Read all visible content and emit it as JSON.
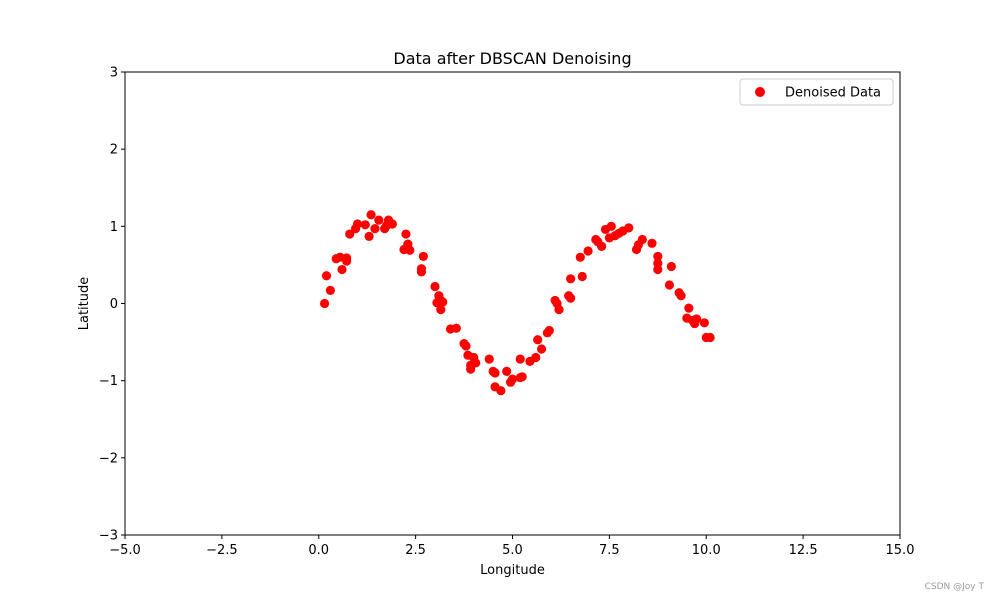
{
  "chart_data": {
    "type": "scatter",
    "title": "Data after DBSCAN Denoising",
    "xlabel": "Longitude",
    "ylabel": "Latitude",
    "xlim": [
      -5,
      15
    ],
    "ylim": [
      -3,
      3
    ],
    "xticks": [
      -5,
      -2.5,
      0,
      2.5,
      5,
      7.5,
      10,
      12.5,
      15
    ],
    "xtick_labels": [
      "−5.0",
      "−2.5",
      "0.0",
      "2.5",
      "5.0",
      "7.5",
      "10.0",
      "12.5",
      "15.0"
    ],
    "yticks": [
      -3,
      -2,
      -1,
      0,
      1,
      2,
      3
    ],
    "ytick_labels": [
      "−3",
      "−2",
      "−1",
      "0",
      "1",
      "2",
      "3"
    ],
    "legend_position": "top-right",
    "grid": false,
    "series": [
      {
        "name": "Denoised Data",
        "color": "#ff0000",
        "points": [
          [
            0.15,
            0.0
          ],
          [
            0.2,
            0.36
          ],
          [
            0.3,
            0.17
          ],
          [
            0.45,
            0.58
          ],
          [
            0.55,
            0.6
          ],
          [
            0.6,
            0.44
          ],
          [
            0.72,
            0.55
          ],
          [
            0.72,
            0.59
          ],
          [
            0.8,
            0.9
          ],
          [
            0.95,
            0.97
          ],
          [
            1.0,
            1.03
          ],
          [
            1.2,
            1.02
          ],
          [
            1.3,
            0.87
          ],
          [
            1.35,
            1.15
          ],
          [
            1.45,
            0.97
          ],
          [
            1.55,
            1.08
          ],
          [
            1.7,
            0.97
          ],
          [
            1.75,
            1.01
          ],
          [
            1.8,
            1.08
          ],
          [
            1.9,
            1.03
          ],
          [
            2.2,
            0.7
          ],
          [
            2.25,
            0.9
          ],
          [
            2.3,
            0.77
          ],
          [
            2.35,
            0.69
          ],
          [
            2.65,
            0.41
          ],
          [
            2.65,
            0.45
          ],
          [
            2.7,
            0.61
          ],
          [
            3.0,
            0.22
          ],
          [
            3.05,
            0.01
          ],
          [
            3.1,
            0.1
          ],
          [
            3.15,
            0.04
          ],
          [
            3.15,
            -0.08
          ],
          [
            3.2,
            0.02
          ],
          [
            3.4,
            -0.33
          ],
          [
            3.55,
            -0.32
          ],
          [
            3.75,
            -0.52
          ],
          [
            3.8,
            -0.55
          ],
          [
            3.85,
            -0.67
          ],
          [
            3.92,
            -0.8
          ],
          [
            3.92,
            -0.85
          ],
          [
            4.0,
            -0.7
          ],
          [
            4.05,
            -0.77
          ],
          [
            4.4,
            -0.72
          ],
          [
            4.5,
            -0.88
          ],
          [
            4.55,
            -0.9
          ],
          [
            4.55,
            -1.08
          ],
          [
            4.7,
            -1.13
          ],
          [
            4.85,
            -0.88
          ],
          [
            4.95,
            -1.02
          ],
          [
            5.0,
            -0.98
          ],
          [
            5.2,
            -0.72
          ],
          [
            5.2,
            -0.96
          ],
          [
            5.25,
            -0.95
          ],
          [
            5.45,
            -0.75
          ],
          [
            5.6,
            -0.7
          ],
          [
            5.65,
            -0.47
          ],
          [
            5.75,
            -0.59
          ],
          [
            5.9,
            -0.38
          ],
          [
            5.95,
            -0.35
          ],
          [
            6.1,
            0.04
          ],
          [
            6.15,
            0.0
          ],
          [
            6.2,
            -0.08
          ],
          [
            6.45,
            0.1
          ],
          [
            6.5,
            0.07
          ],
          [
            6.5,
            0.32
          ],
          [
            6.75,
            0.6
          ],
          [
            6.8,
            0.35
          ],
          [
            6.95,
            0.68
          ],
          [
            7.15,
            0.83
          ],
          [
            7.2,
            0.8
          ],
          [
            7.3,
            0.74
          ],
          [
            7.4,
            0.96
          ],
          [
            7.5,
            0.85
          ],
          [
            7.55,
            1.0
          ],
          [
            7.65,
            0.88
          ],
          [
            7.75,
            0.91
          ],
          [
            7.85,
            0.94
          ],
          [
            8.0,
            0.98
          ],
          [
            8.2,
            0.7
          ],
          [
            8.25,
            0.76
          ],
          [
            8.35,
            0.83
          ],
          [
            8.6,
            0.78
          ],
          [
            8.75,
            0.44
          ],
          [
            8.75,
            0.52
          ],
          [
            8.75,
            0.61
          ],
          [
            9.05,
            0.24
          ],
          [
            9.1,
            0.48
          ],
          [
            9.3,
            0.14
          ],
          [
            9.35,
            0.1
          ],
          [
            9.5,
            -0.19
          ],
          [
            9.55,
            -0.06
          ],
          [
            9.65,
            -0.22
          ],
          [
            9.7,
            -0.26
          ],
          [
            9.75,
            -0.2
          ],
          [
            9.95,
            -0.25
          ],
          [
            10.0,
            -0.44
          ],
          [
            10.1,
            -0.44
          ]
        ]
      }
    ]
  },
  "watermark": "CSDN @Joy T"
}
